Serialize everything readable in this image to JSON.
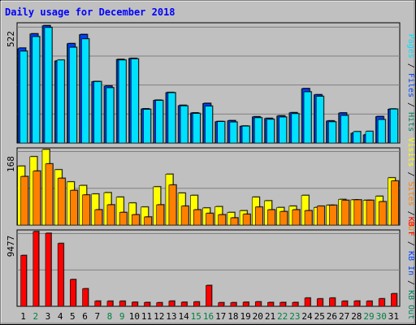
{
  "title": "Daily usage for December 2018",
  "days": [
    "1",
    "2",
    "3",
    "4",
    "5",
    "6",
    "7",
    "8",
    "9",
    "10",
    "11",
    "12",
    "13",
    "14",
    "15",
    "16",
    "17",
    "18",
    "19",
    "20",
    "21",
    "22",
    "23",
    "24",
    "25",
    "26",
    "27",
    "28",
    "29",
    "30",
    "31"
  ],
  "weekend_days": [
    "2",
    "8",
    "9",
    "15",
    "16",
    "22",
    "23",
    "29",
    "30"
  ],
  "colors": {
    "hits": "#00805c",
    "files": "#0040ff",
    "pages": "#00e0ff",
    "visits": "#ffff00",
    "sites": "#ff8000",
    "kbin": "#ff0000",
    "weekday_label": "#008040",
    "frame_bg": "#c0c0c0",
    "title": "#0000ff"
  },
  "chart_data": [
    {
      "type": "bar",
      "ymax_label": "522",
      "ylim": [
        0,
        522
      ],
      "legend": [
        {
          "text": "Pages",
          "color": "#00e0ff"
        },
        {
          "text": " / ",
          "color": "#000000"
        },
        {
          "text": "Files",
          "color": "#0040ff"
        },
        {
          "text": " / ",
          "color": "#000000"
        },
        {
          "text": "Hits",
          "color": "#00805c"
        }
      ],
      "series": [
        {
          "key": "hits",
          "values": [
            414,
            480,
            516,
            361,
            437,
            477,
            270,
            250,
            368,
            372,
            150,
            188,
            222,
            164,
            132,
            174,
            94,
            98,
            74,
            115,
            108,
            119,
            133,
            239,
            212,
            97,
            132,
            43,
            36,
            116,
            149
          ]
        },
        {
          "key": "files",
          "values": [
            418,
            480,
            516,
            359,
            437,
            477,
            270,
            251,
            366,
            372,
            150,
            188,
            222,
            166,
            132,
            174,
            94,
            98,
            74,
            115,
            108,
            119,
            133,
            239,
            212,
            97,
            132,
            43,
            36,
            116,
            149
          ]
        },
        {
          "key": "pages",
          "values": [
            404,
            468,
            508,
            365,
            421,
            458,
            270,
            243,
            365,
            370,
            148,
            187,
            221,
            163,
            130,
            162,
            94,
            92,
            74,
            111,
            104,
            114,
            129,
            225,
            205,
            93,
            121,
            50,
            51,
            103,
            149
          ]
        }
      ]
    },
    {
      "type": "bar",
      "ymax_label": "168",
      "ylim": [
        0,
        168
      ],
      "legend": [
        {
          "text": "Visits",
          "color": "#ffff00"
        },
        {
          "text": " / ",
          "color": "#000000"
        },
        {
          "text": "Sites",
          "color": "#ff8000"
        },
        {
          "text": " / ",
          "color": "#000000"
        },
        {
          "text": "Out",
          "color": "#ff8000"
        }
      ],
      "series": [
        {
          "key": "visits",
          "values": [
            131,
            152,
            168,
            123,
            96,
            88,
            69,
            72,
            62,
            49,
            40,
            85,
            113,
            71,
            66,
            38,
            41,
            28,
            32,
            62,
            54,
            39,
            42,
            66,
            39,
            44,
            57,
            56,
            55,
            64,
            105
          ]
        },
        {
          "key": "sites",
          "values": [
            108,
            120,
            136,
            104,
            77,
            67,
            34,
            45,
            28,
            23,
            18,
            45,
            89,
            42,
            34,
            26,
            23,
            16,
            24,
            40,
            34,
            30,
            34,
            32,
            42,
            44,
            55,
            56,
            55,
            52,
            98
          ]
        }
      ]
    },
    {
      "type": "bar",
      "ymax_label": "9477",
      "ylim": [
        0,
        9477
      ],
      "legend": [
        {
          "text": "KB F",
          "color": "#ff0000"
        },
        {
          "text": " / ",
          "color": "#000000"
        },
        {
          "text": "KB In",
          "color": "#0040ff"
        },
        {
          "text": " / ",
          "color": "#000000"
        },
        {
          "text": "KB Out",
          "color": "#00805c"
        }
      ],
      "series": [
        {
          "key": "kbin",
          "values": [
            6450,
            9477,
            9260,
            7970,
            3400,
            2230,
            660,
            650,
            650,
            520,
            490,
            460,
            660,
            520,
            560,
            2650,
            460,
            460,
            520,
            570,
            490,
            490,
            490,
            1050,
            950,
            1050,
            650,
            670,
            650,
            960,
            1600
          ]
        }
      ]
    }
  ]
}
